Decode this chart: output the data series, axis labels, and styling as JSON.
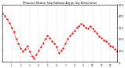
{
  "title": "Milwaukee Weather Solar Radiation Avg per Day W/m2/minute",
  "ylim": [
    0,
    500
  ],
  "xlim": [
    0,
    51
  ],
  "background_color": "#ffffff",
  "line_color": "#dd0000",
  "grid_color": "#999999",
  "y_values": [
    420,
    400,
    370,
    340,
    300,
    260,
    200,
    160,
    120,
    90,
    110,
    140,
    90,
    50,
    30,
    60,
    100,
    130,
    160,
    200,
    230,
    210,
    180,
    160,
    130,
    80,
    100,
    120,
    160,
    200,
    230,
    250,
    270,
    300,
    310,
    330,
    320,
    300,
    290,
    310,
    290,
    270,
    250,
    220,
    210,
    190,
    180,
    160,
    140,
    130,
    110,
    90
  ],
  "vgrid_positions": [
    4,
    8,
    12,
    16,
    20,
    24,
    28,
    32,
    36,
    40,
    44,
    48
  ],
  "ytick_labels": [
    "500",
    "400",
    "300",
    "200",
    "100",
    "0"
  ],
  "ytick_values": [
    500,
    400,
    300,
    200,
    100,
    0
  ],
  "xtick_labels": [
    "1",
    "2",
    "3",
    "4",
    "5",
    "6",
    "7",
    "8",
    "9",
    "10",
    "11",
    "12"
  ],
  "xtick_positions": [
    4,
    8,
    12,
    16,
    20,
    24,
    28,
    32,
    36,
    40,
    44,
    48
  ]
}
